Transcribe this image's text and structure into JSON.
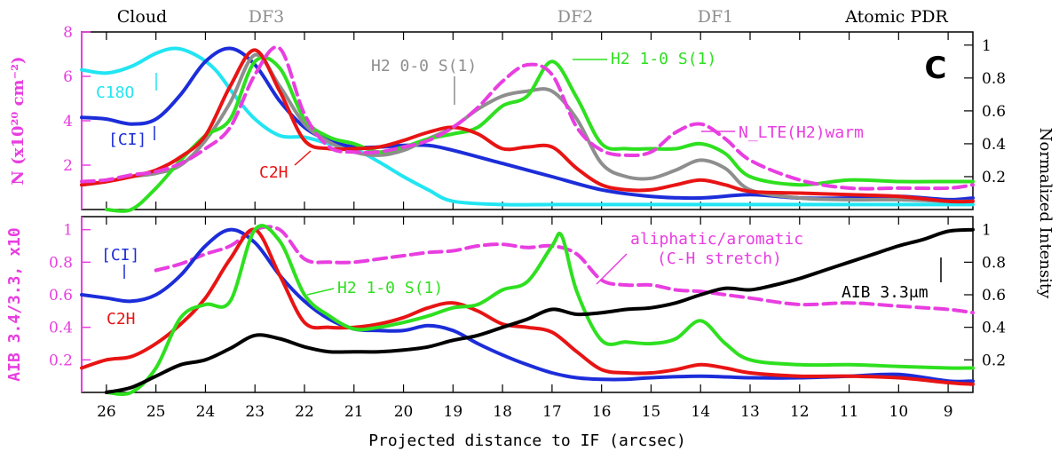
{
  "chart_data": [
    {
      "type": "line",
      "panel": "top",
      "panel_letter": "C",
      "xlabel": "Projected distance to IF (arcsec)",
      "xlim": [
        26.5,
        8.5
      ],
      "x_ticks": [
        26,
        25,
        24,
        23,
        22,
        21,
        20,
        19,
        18,
        17,
        16,
        15,
        14,
        13,
        12,
        11,
        10,
        9
      ],
      "region_labels": [
        "Cloud",
        "DF3",
        "DF2",
        "DF1",
        "Atomic PDR"
      ],
      "ylabel_left": "N (x10²⁰ cm⁻²)",
      "ylim_left": [
        0,
        8
      ],
      "yticks_left": [
        2,
        4,
        6,
        8
      ],
      "ylabel_right": "Normalized Intensity",
      "ylim_right": [
        0,
        1.08
      ],
      "yticks_right": [
        0.2,
        0.4,
        0.6,
        0.8,
        1
      ],
      "series": [
        {
          "name": "C18O",
          "color": "#22e5f2",
          "dashed": false,
          "x": [
            26.5,
            26,
            25.5,
            25,
            24.6,
            24.2,
            23.8,
            23.4,
            23,
            22.5,
            22,
            21.5,
            21,
            20.5,
            20,
            19.5,
            19,
            18,
            17,
            16,
            15,
            14,
            13,
            12,
            11,
            10,
            9,
            8.5
          ],
          "y": [
            0.85,
            0.83,
            0.87,
            0.95,
            0.98,
            0.94,
            0.85,
            0.69,
            0.55,
            0.45,
            0.44,
            0.4,
            0.37,
            0.29,
            0.2,
            0.12,
            0.05,
            0.03,
            0.03,
            0.03,
            0.03,
            0.03,
            0.03,
            0.03,
            0.03,
            0.03,
            0.03,
            0.03
          ]
        },
        {
          "name": "[CI]",
          "color": "#1c2dd9",
          "dashed": false,
          "x": [
            26.5,
            26,
            25.5,
            25,
            24.5,
            24,
            23.5,
            23,
            22.5,
            22,
            21.5,
            21,
            20.5,
            20,
            19.5,
            19,
            18,
            17,
            16,
            15,
            14,
            13,
            12,
            11,
            10,
            9,
            8.5
          ],
          "y": [
            0.56,
            0.55,
            0.52,
            0.55,
            0.7,
            0.9,
            0.98,
            0.88,
            0.66,
            0.5,
            0.42,
            0.38,
            0.38,
            0.39,
            0.39,
            0.36,
            0.28,
            0.2,
            0.12,
            0.08,
            0.07,
            0.09,
            0.07,
            0.07,
            0.08,
            0.06,
            0.07
          ]
        },
        {
          "name": "H2 0-0 S(1)",
          "color": "#8e8e8e",
          "dashed": false,
          "x": [
            26.5,
            26,
            25.5,
            25,
            24.5,
            24,
            23.5,
            23,
            22.5,
            22,
            21.5,
            21,
            20.5,
            20,
            19.5,
            19,
            18.5,
            18,
            17.5,
            17,
            16.5,
            16,
            15.5,
            15,
            14.5,
            14,
            13.5,
            13,
            12,
            11,
            10,
            9,
            8.5
          ],
          "y": [
            0.15,
            0.17,
            0.2,
            0.22,
            0.27,
            0.42,
            0.65,
            0.94,
            0.75,
            0.52,
            0.41,
            0.35,
            0.33,
            0.36,
            0.43,
            0.5,
            0.61,
            0.69,
            0.72,
            0.72,
            0.55,
            0.28,
            0.2,
            0.19,
            0.24,
            0.3,
            0.25,
            0.12,
            0.07,
            0.06,
            0.06,
            0.05,
            0.05
          ]
        },
        {
          "name": "H2 1-0 S(1)",
          "color": "#2ee01f",
          "dashed": false,
          "x": [
            26,
            25.5,
            25,
            24.5,
            24,
            23.5,
            23,
            22.5,
            22,
            21.5,
            21,
            20.5,
            20,
            19.5,
            19,
            18.5,
            18,
            17.5,
            17,
            16.5,
            16,
            15.5,
            15,
            14.5,
            14,
            13.5,
            13,
            12,
            11,
            10,
            9,
            8.5
          ],
          "y": [
            0,
            0,
            0.13,
            0.3,
            0.45,
            0.55,
            0.9,
            0.86,
            0.55,
            0.44,
            0.4,
            0.35,
            0.38,
            0.43,
            0.46,
            0.5,
            0.63,
            0.69,
            0.9,
            0.68,
            0.4,
            0.37,
            0.37,
            0.37,
            0.4,
            0.34,
            0.2,
            0.15,
            0.18,
            0.17,
            0.17,
            0.17
          ]
        },
        {
          "name": "C2H",
          "color": "#e81414",
          "dashed": false,
          "x": [
            26.5,
            26,
            25.5,
            25,
            24.5,
            24,
            23.5,
            23,
            22.5,
            22,
            21.5,
            21,
            20.5,
            20,
            19.5,
            19,
            18.5,
            18,
            17.5,
            17,
            16.5,
            16,
            15.5,
            15,
            14.5,
            14,
            13.5,
            13,
            12,
            11,
            10,
            9,
            8.5
          ],
          "y": [
            0.15,
            0.17,
            0.2,
            0.24,
            0.32,
            0.45,
            0.75,
            0.97,
            0.72,
            0.42,
            0.37,
            0.37,
            0.38,
            0.42,
            0.47,
            0.5,
            0.46,
            0.37,
            0.38,
            0.38,
            0.25,
            0.15,
            0.12,
            0.12,
            0.15,
            0.18,
            0.15,
            0.11,
            0.1,
            0.09,
            0.08,
            0.05,
            0.05
          ]
        },
        {
          "name": "N_LTE(H2)warm",
          "color": "#e83ee0",
          "dashed": true,
          "x": [
            26.5,
            26,
            25.5,
            25,
            24.5,
            24,
            23.5,
            23,
            22.5,
            22,
            21.5,
            21,
            20.5,
            20,
            19.5,
            19,
            18.5,
            18,
            17.5,
            17,
            16.5,
            16,
            15.5,
            15,
            14.5,
            14,
            13.5,
            13,
            12,
            11,
            10,
            9,
            8.5
          ],
          "y": [
            0.17,
            0.18,
            0.21,
            0.23,
            0.28,
            0.37,
            0.5,
            0.82,
            0.98,
            0.58,
            0.38,
            0.35,
            0.35,
            0.38,
            0.42,
            0.5,
            0.62,
            0.78,
            0.88,
            0.82,
            0.5,
            0.36,
            0.33,
            0.35,
            0.47,
            0.52,
            0.43,
            0.3,
            0.18,
            0.13,
            0.13,
            0.13,
            0.15
          ]
        }
      ],
      "annotations": [
        {
          "text": "H2 0-0 S(1)",
          "color": "#8e8e8e"
        },
        {
          "text": "H2 1-0 S(1)",
          "color": "#2ee01f"
        },
        {
          "text": "C18O",
          "color": "#22e5f2"
        },
        {
          "text": "[CI]",
          "color": "#1c2dd9"
        },
        {
          "text": "C2H",
          "color": "#e81414"
        },
        {
          "text": "N_LTE(H2)warm",
          "color": "#e83ee0"
        }
      ]
    },
    {
      "type": "line",
      "panel": "bottom",
      "xlabel": "Projected distance to IF (arcsec)",
      "xlim": [
        26.5,
        8.5
      ],
      "ylabel_left": "AIB 3.4/3.3, x10",
      "ylim_left": [
        0,
        1.08
      ],
      "yticks_left": [
        0.2,
        0.4,
        0.6,
        0.8,
        1
      ],
      "ylabel_right": "Normalized Intensity",
      "ylim_right": [
        0,
        1.08
      ],
      "yticks_right": [
        0.2,
        0.4,
        0.6,
        0.8,
        1
      ],
      "series": [
        {
          "name": "aliphatic/aromatic (C-H stretch)",
          "color": "#e83ee0",
          "dashed": true,
          "x": [
            25,
            24.5,
            24,
            23.5,
            23,
            22.5,
            22,
            21.5,
            21,
            20.5,
            20,
            19.5,
            19,
            18.5,
            18,
            17.5,
            17,
            16.5,
            16,
            15.5,
            15,
            14.5,
            14,
            13.5,
            13,
            12,
            11,
            10,
            9,
            8.5
          ],
          "y": [
            0.75,
            0.79,
            0.85,
            0.9,
            1,
            1,
            0.82,
            0.8,
            0.8,
            0.82,
            0.84,
            0.86,
            0.87,
            0.9,
            0.91,
            0.89,
            0.9,
            0.85,
            0.69,
            0.66,
            0.66,
            0.63,
            0.62,
            0.6,
            0.58,
            0.54,
            0.55,
            0.53,
            0.51,
            0.49
          ]
        },
        {
          "name": "[CI]",
          "color": "#1c2dd9",
          "dashed": false,
          "x": [
            26.5,
            26,
            25.5,
            25,
            24.5,
            24,
            23.5,
            23,
            22.5,
            22,
            21.5,
            21,
            20.5,
            20,
            19.5,
            19,
            18.5,
            18,
            17.5,
            17,
            16.5,
            16,
            15.5,
            15,
            14,
            13,
            12,
            11,
            10,
            9,
            8.5
          ],
          "y": [
            0.6,
            0.58,
            0.56,
            0.6,
            0.72,
            0.9,
            1,
            0.92,
            0.72,
            0.56,
            0.45,
            0.39,
            0.38,
            0.38,
            0.41,
            0.38,
            0.3,
            0.23,
            0.17,
            0.12,
            0.09,
            0.08,
            0.08,
            0.09,
            0.1,
            0.09,
            0.09,
            0.1,
            0.11,
            0.07,
            0.07
          ]
        },
        {
          "name": "C2H",
          "color": "#e81414",
          "dashed": false,
          "x": [
            26.5,
            26,
            25.5,
            25,
            24.5,
            24,
            23.5,
            23,
            22.5,
            22,
            21.5,
            21,
            20.5,
            20,
            19.5,
            19,
            18.5,
            18,
            17.5,
            17,
            16.5,
            16,
            15.5,
            15,
            14.5,
            14,
            13.5,
            13,
            12,
            11,
            10,
            9,
            8.5
          ],
          "y": [
            0.15,
            0.2,
            0.22,
            0.3,
            0.42,
            0.58,
            0.82,
            1,
            0.72,
            0.43,
            0.4,
            0.4,
            0.42,
            0.46,
            0.52,
            0.55,
            0.5,
            0.42,
            0.4,
            0.37,
            0.25,
            0.14,
            0.12,
            0.12,
            0.14,
            0.17,
            0.15,
            0.12,
            0.1,
            0.1,
            0.09,
            0.06,
            0.05
          ]
        },
        {
          "name": "H2 1-0 S(1)",
          "color": "#2ee01f",
          "dashed": false,
          "x": [
            26,
            25.5,
            25,
            24.5,
            24,
            23.5,
            23,
            22.5,
            22,
            21.5,
            21,
            20.5,
            20,
            19.5,
            19,
            18.5,
            18,
            17.5,
            17,
            16.8,
            16.5,
            16,
            15.5,
            15,
            14.5,
            14,
            13.5,
            13,
            12,
            11,
            10,
            9,
            8.5
          ],
          "y": [
            0,
            0,
            0.15,
            0.46,
            0.54,
            0.56,
            1,
            0.93,
            0.6,
            0.47,
            0.39,
            0.4,
            0.43,
            0.47,
            0.52,
            0.54,
            0.63,
            0.68,
            0.9,
            0.96,
            0.62,
            0.32,
            0.31,
            0.3,
            0.33,
            0.44,
            0.3,
            0.2,
            0.17,
            0.17,
            0.16,
            0.15,
            0.15
          ]
        },
        {
          "name": "AIB 3.3um",
          "color": "#000000",
          "dashed": false,
          "x": [
            26,
            25.5,
            25,
            24.5,
            24,
            23.5,
            23,
            22.5,
            22,
            21.5,
            21,
            20.5,
            20,
            19.5,
            19,
            18.5,
            18,
            17.5,
            17,
            16.5,
            16,
            15.5,
            15,
            14.5,
            14,
            13.5,
            13,
            12.5,
            12,
            11.5,
            11,
            10.5,
            10,
            9.5,
            9,
            8.5
          ],
          "y": [
            0,
            0.03,
            0.1,
            0.17,
            0.2,
            0.27,
            0.35,
            0.33,
            0.28,
            0.25,
            0.25,
            0.25,
            0.26,
            0.28,
            0.32,
            0.35,
            0.4,
            0.45,
            0.51,
            0.48,
            0.49,
            0.51,
            0.52,
            0.55,
            0.6,
            0.64,
            0.63,
            0.66,
            0.7,
            0.75,
            0.8,
            0.85,
            0.9,
            0.94,
            0.99,
            1
          ]
        }
      ],
      "annotations": [
        {
          "text": "aliphatic/aromatic",
          "color": "#e83ee0"
        },
        {
          "text": "(C-H stretch)",
          "color": "#e83ee0"
        },
        {
          "text": "[CI]",
          "color": "#1c2dd9"
        },
        {
          "text": "C2H",
          "color": "#e81414"
        },
        {
          "text": "H2 1-0 S(1)",
          "color": "#2ee01f"
        },
        {
          "text": "AIB 3.3μm",
          "color": "#000000"
        }
      ]
    }
  ]
}
